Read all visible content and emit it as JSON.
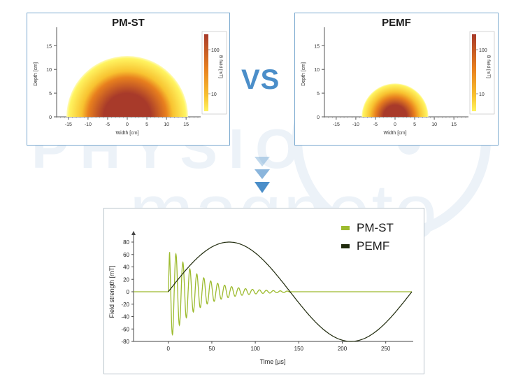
{
  "watermark": {
    "line1": "PHYSIO",
    "line2": "magneto"
  },
  "comparison_label": "VS",
  "colors": {
    "panel_border": "#7aa9cf",
    "arrow": "#4b8ec9",
    "pm_st": "#9dbb2f",
    "pemf": "#1f2a0c",
    "field_hot": "#a83a2a",
    "field_mid": "#e8801e",
    "field_cold": "#fff460"
  },
  "chart_data": [
    {
      "type": "heatmap",
      "title": "PM-ST",
      "xlabel": "Width [cm]",
      "ylabel": "Depth [cm]",
      "colorbar_label": "B field [mT]",
      "colorbar_ticks": [
        "100",
        "10"
      ],
      "x_ticks": [
        -15,
        -10,
        -5,
        0,
        5,
        10,
        15
      ],
      "y_ticks": [
        0,
        5,
        10,
        15
      ],
      "xlim": [
        -18,
        18
      ],
      "ylim": [
        0,
        18
      ],
      "field_region": {
        "shape": "half-disc",
        "center_x": 0,
        "radius": 15.5,
        "hot_core_radius": 8
      }
    },
    {
      "type": "heatmap",
      "title": "PEMF",
      "xlabel": "Width [cm]",
      "ylabel": "Depth [cm]",
      "colorbar_label": "B field [mT]",
      "colorbar_ticks": [
        "100",
        "10"
      ],
      "x_ticks": [
        -15,
        -10,
        -5,
        0,
        5,
        10,
        15
      ],
      "y_ticks": [
        0,
        5,
        10,
        15
      ],
      "xlim": [
        -18,
        18
      ],
      "ylim": [
        0,
        18
      ],
      "field_region": {
        "shape": "half-disc",
        "center_x": 0,
        "radius": 8.5,
        "hot_core_radius": 4
      }
    },
    {
      "type": "line",
      "xlabel": "Time [µs]",
      "ylabel": "Field strength [mT]",
      "xlim": [
        -40,
        280
      ],
      "ylim": [
        -80,
        80
      ],
      "x_ticks": [
        0,
        50,
        100,
        150,
        200,
        250
      ],
      "y_ticks": [
        -80,
        -60,
        -40,
        -20,
        0,
        20,
        40,
        60,
        80
      ],
      "series": [
        {
          "name": "PM-ST",
          "model": "damped-oscillation",
          "t_start": 0,
          "t_end": 140,
          "peak": 80,
          "period_us": 8,
          "decay_tau_us": 32
        },
        {
          "name": "PEMF",
          "model": "sine-period",
          "t_start": 0,
          "t_end": 280,
          "amplitude": 80,
          "period_us": 280
        }
      ]
    }
  ]
}
